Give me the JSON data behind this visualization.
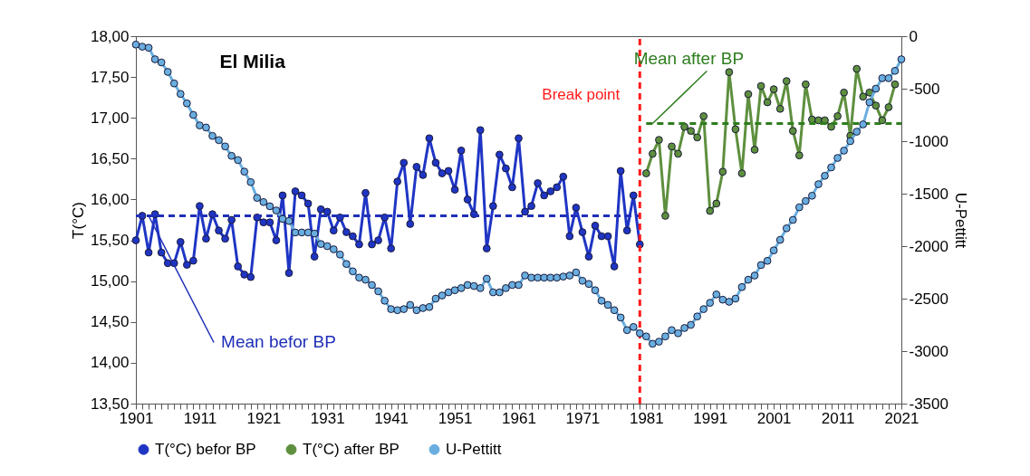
{
  "chart_data": {
    "type": "line",
    "title": "El Milia",
    "ylabel": "T(°C)",
    "y2label": "U-Pettitt",
    "xlim": [
      1901,
      2021
    ],
    "xticks": [
      1901,
      {
        "value": 1902,
        "label": null
      },
      {
        "value": 1903,
        "label": null
      },
      {
        "value": 1904,
        "label": null
      },
      {
        "value": 1905,
        "label": null
      },
      {
        "value": 1906,
        "label": null
      },
      {
        "value": 1907,
        "label": null
      },
      {
        "value": 1908,
        "label": null
      },
      {
        "value": 1909,
        "label": null
      },
      {
        "value": 1910,
        "label": null
      },
      1911,
      {
        "value": 1912,
        "label": null
      },
      {
        "value": 1913,
        "label": null
      },
      {
        "value": 1914,
        "label": null
      },
      {
        "value": 1915,
        "label": null
      },
      {
        "value": 1916,
        "label": null
      },
      {
        "value": 1917,
        "label": null
      },
      {
        "value": 1918,
        "label": null
      },
      {
        "value": 1919,
        "label": null
      },
      {
        "value": 1920,
        "label": null
      },
      1921,
      {
        "value": 1922,
        "label": null
      },
      {
        "value": 1923,
        "label": null
      },
      {
        "value": 1924,
        "label": null
      },
      {
        "value": 1925,
        "label": null
      },
      {
        "value": 1926,
        "label": null
      },
      {
        "value": 1927,
        "label": null
      },
      {
        "value": 1928,
        "label": null
      },
      {
        "value": 1929,
        "label": null
      },
      {
        "value": 1930,
        "label": null
      },
      1931,
      {
        "value": 1932,
        "label": null
      },
      {
        "value": 1933,
        "label": null
      },
      {
        "value": 1934,
        "label": null
      },
      {
        "value": 1935,
        "label": null
      },
      {
        "value": 1936,
        "label": null
      },
      {
        "value": 1937,
        "label": null
      },
      {
        "value": 1938,
        "label": null
      },
      {
        "value": 1939,
        "label": null
      },
      {
        "value": 1940,
        "label": null
      },
      1941,
      {
        "value": 1942,
        "label": null
      },
      {
        "value": 1943,
        "label": null
      },
      {
        "value": 1944,
        "label": null
      },
      {
        "value": 1945,
        "label": null
      },
      {
        "value": 1946,
        "label": null
      },
      {
        "value": 1947,
        "label": null
      },
      {
        "value": 1948,
        "label": null
      },
      {
        "value": 1949,
        "label": null
      },
      {
        "value": 1950,
        "label": null
      },
      1951,
      {
        "value": 1952,
        "label": null
      },
      {
        "value": 1953,
        "label": null
      },
      {
        "value": 1954,
        "label": null
      },
      {
        "value": 1955,
        "label": null
      },
      {
        "value": 1956,
        "label": null
      },
      {
        "value": 1957,
        "label": null
      },
      {
        "value": 1958,
        "label": null
      },
      {
        "value": 1959,
        "label": null
      },
      {
        "value": 1960,
        "label": null
      },
      1961,
      {
        "value": 1962,
        "label": null
      },
      {
        "value": 1963,
        "label": null
      },
      {
        "value": 1964,
        "label": null
      },
      {
        "value": 1965,
        "label": null
      },
      {
        "value": 1966,
        "label": null
      },
      {
        "value": 1967,
        "label": null
      },
      {
        "value": 1968,
        "label": null
      },
      {
        "value": 1969,
        "label": null
      },
      {
        "value": 1970,
        "label": null
      },
      1971,
      {
        "value": 1972,
        "label": null
      },
      {
        "value": 1973,
        "label": null
      },
      {
        "value": 1974,
        "label": null
      },
      {
        "value": 1975,
        "label": null
      },
      {
        "value": 1976,
        "label": null
      },
      {
        "value": 1977,
        "label": null
      },
      {
        "value": 1978,
        "label": null
      },
      {
        "value": 1979,
        "label": null
      },
      {
        "value": 1980,
        "label": null
      },
      1981,
      {
        "value": 1982,
        "label": null
      },
      {
        "value": 1983,
        "label": null
      },
      {
        "value": 1984,
        "label": null
      },
      {
        "value": 1985,
        "label": null
      },
      {
        "value": 1986,
        "label": null
      },
      {
        "value": 1987,
        "label": null
      },
      {
        "value": 1988,
        "label": null
      },
      {
        "value": 1989,
        "label": null
      },
      {
        "value": 1990,
        "label": null
      },
      1991,
      {
        "value": 1992,
        "label": null
      },
      {
        "value": 1993,
        "label": null
      },
      {
        "value": 1994,
        "label": null
      },
      {
        "value": 1995,
        "label": null
      },
      {
        "value": 1996,
        "label": null
      },
      {
        "value": 1997,
        "label": null
      },
      {
        "value": 1998,
        "label": null
      },
      {
        "value": 1999,
        "label": null
      },
      {
        "value": 2000,
        "label": null
      },
      2001,
      {
        "value": 2002,
        "label": null
      },
      {
        "value": 2003,
        "label": null
      },
      {
        "value": 2004,
        "label": null
      },
      {
        "value": 2005,
        "label": null
      },
      {
        "value": 2006,
        "label": null
      },
      {
        "value": 2007,
        "label": null
      },
      {
        "value": 2008,
        "label": null
      },
      {
        "value": 2009,
        "label": null
      },
      {
        "value": 2010,
        "label": null
      },
      2011,
      {
        "value": 2012,
        "label": null
      },
      {
        "value": 2013,
        "label": null
      },
      {
        "value": 2014,
        "label": null
      },
      {
        "value": 2015,
        "label": null
      },
      {
        "value": 2016,
        "label": null
      },
      {
        "value": 2017,
        "label": null
      },
      {
        "value": 2018,
        "label": null
      },
      {
        "value": 2019,
        "label": null
      },
      {
        "value": 2020,
        "label": null
      },
      2021
    ],
    "ylim": [
      13.5,
      18
    ],
    "yticks": [
      {
        "value": 13.5,
        "label": "13,50"
      },
      {
        "value": 14,
        "label": "14,00"
      },
      {
        "value": 14.5,
        "label": "14,50"
      },
      {
        "value": 15,
        "label": "15,00"
      },
      {
        "value": 15.5,
        "label": "15,50"
      },
      {
        "value": 16,
        "label": "16,00"
      },
      {
        "value": 16.5,
        "label": "16,50"
      },
      {
        "value": 17,
        "label": "17,00"
      },
      {
        "value": 17.5,
        "label": "17,50"
      },
      {
        "value": 18,
        "label": "18,00"
      }
    ],
    "y2lim": [
      -3500,
      0
    ],
    "y2ticks": [
      -3500,
      -3000,
      -2500,
      -2000,
      -1500,
      -1000,
      -500,
      0
    ],
    "grid": false,
    "legend": "bottom",
    "series": [
      {
        "name": "T(°C) befor BP",
        "color": "#1f35c4",
        "marker": "circle",
        "x": [
          1901,
          1902,
          1903,
          1904,
          1905,
          1906,
          1907,
          1908,
          1909,
          1910,
          1911,
          1912,
          1913,
          1914,
          1915,
          1916,
          1917,
          1918,
          1919,
          1920,
          1921,
          1922,
          1923,
          1924,
          1925,
          1926,
          1927,
          1928,
          1929,
          1930,
          1931,
          1932,
          1933,
          1934,
          1935,
          1936,
          1937,
          1938,
          1939,
          1940,
          1941,
          1942,
          1943,
          1944,
          1945,
          1946,
          1947,
          1948,
          1949,
          1950,
          1951,
          1952,
          1953,
          1954,
          1955,
          1956,
          1957,
          1958,
          1959,
          1960,
          1961,
          1962,
          1963,
          1964,
          1965,
          1966,
          1967,
          1968,
          1969,
          1970,
          1971,
          1972,
          1973,
          1974,
          1975,
          1976,
          1977,
          1978,
          1979,
          1980
        ],
        "values": [
          15.5,
          15.8,
          15.35,
          15.82,
          15.35,
          15.22,
          15.22,
          15.48,
          15.2,
          15.25,
          15.92,
          15.52,
          15.82,
          15.62,
          15.52,
          15.75,
          15.18,
          15.08,
          15.05,
          15.78,
          15.72,
          15.72,
          15.5,
          16.05,
          15.1,
          16.1,
          16.05,
          15.95,
          15.3,
          15.88,
          15.85,
          15.62,
          15.78,
          15.6,
          15.55,
          15.45,
          16.08,
          15.45,
          15.5,
          15.78,
          15.4,
          16.22,
          16.45,
          15.7,
          16.4,
          16.3,
          16.75,
          16.45,
          16.32,
          16.35,
          16.12,
          16.6,
          16.0,
          15.82,
          16.85,
          15.4,
          15.92,
          16.55,
          16.38,
          16.15,
          16.75,
          15.85,
          15.92,
          16.2,
          16.05,
          16.1,
          16.15,
          16.28,
          15.55,
          15.9,
          15.6,
          15.3,
          15.68,
          15.55,
          15.55,
          15.18,
          16.35,
          15.62,
          16.05,
          15.45
        ]
      },
      {
        "name": "T(°C) after BP",
        "color": "#5e8f3e",
        "marker": "circle",
        "x": [
          1981,
          1982,
          1983,
          1984,
          1985,
          1986,
          1987,
          1988,
          1989,
          1990,
          1991,
          1992,
          1993,
          1994,
          1995,
          1996,
          1997,
          1998,
          1999,
          2000,
          2001,
          2002,
          2003,
          2004,
          2005,
          2006,
          2007,
          2008,
          2009,
          2010,
          2011,
          2012,
          2013,
          2014,
          2015,
          2016,
          2017,
          2018,
          2019,
          2020
        ],
        "values": [
          16.32,
          16.56,
          16.73,
          15.8,
          16.65,
          16.56,
          16.89,
          16.84,
          16.76,
          17.02,
          15.86,
          15.95,
          16.34,
          17.56,
          16.86,
          16.32,
          17.29,
          16.61,
          17.39,
          17.19,
          17.35,
          17.11,
          17.45,
          16.84,
          16.54,
          17.41,
          16.98,
          16.97,
          16.97,
          16.89,
          17.02,
          17.31,
          16.78,
          17.6,
          17.26,
          17.31,
          17.15,
          16.97,
          17.13,
          17.41
        ]
      },
      {
        "name": "U-Pettitt",
        "color": "#6aaee0",
        "marker": "circle",
        "axis": "y2",
        "x": [
          1901,
          1902,
          1903,
          1904,
          1905,
          1906,
          1907,
          1908,
          1909,
          1910,
          1911,
          1912,
          1913,
          1914,
          1915,
          1916,
          1917,
          1918,
          1919,
          1920,
          1921,
          1922,
          1923,
          1924,
          1925,
          1926,
          1927,
          1928,
          1929,
          1930,
          1931,
          1932,
          1933,
          1934,
          1935,
          1936,
          1937,
          1938,
          1939,
          1940,
          1941,
          1942,
          1943,
          1944,
          1945,
          1946,
          1947,
          1948,
          1949,
          1950,
          1951,
          1952,
          1953,
          1954,
          1955,
          1956,
          1957,
          1958,
          1959,
          1960,
          1961,
          1962,
          1963,
          1964,
          1965,
          1966,
          1967,
          1968,
          1969,
          1970,
          1971,
          1972,
          1973,
          1974,
          1975,
          1976,
          1977,
          1978,
          1979,
          1980,
          1981,
          1982,
          1983,
          1984,
          1985,
          1986,
          1987,
          1988,
          1989,
          1990,
          1991,
          1992,
          1993,
          1994,
          1995,
          1996,
          1997,
          1998,
          1999,
          2000,
          2001,
          2002,
          2003,
          2004,
          2005,
          2006,
          2007,
          2008,
          2009,
          2010,
          2011,
          2012,
          2013,
          2014,
          2015,
          2016,
          2017,
          2018,
          2019,
          2020,
          2021
        ],
        "values": [
          -80,
          -100,
          -110,
          -220,
          -250,
          -340,
          -450,
          -550,
          -640,
          -750,
          -850,
          -870,
          -950,
          -990,
          -1050,
          -1140,
          -1180,
          -1290,
          -1390,
          -1540,
          -1580,
          -1620,
          -1660,
          -1740,
          -1760,
          -1870,
          -1870,
          -1870,
          -1880,
          -1980,
          -2000,
          -2030,
          -2080,
          -2170,
          -2240,
          -2300,
          -2320,
          -2370,
          -2430,
          -2520,
          -2600,
          -2610,
          -2600,
          -2560,
          -2610,
          -2590,
          -2580,
          -2500,
          -2470,
          -2440,
          -2420,
          -2400,
          -2370,
          -2380,
          -2400,
          -2310,
          -2440,
          -2440,
          -2400,
          -2370,
          -2370,
          -2280,
          -2300,
          -2300,
          -2300,
          -2300,
          -2300,
          -2290,
          -2280,
          -2250,
          -2330,
          -2360,
          -2420,
          -2520,
          -2560,
          -2610,
          -2680,
          -2800,
          -2770,
          -2830,
          -2860,
          -2930,
          -2910,
          -2860,
          -2800,
          -2830,
          -2780,
          -2750,
          -2670,
          -2600,
          -2540,
          -2460,
          -2510,
          -2530,
          -2500,
          -2390,
          -2320,
          -2280,
          -2180,
          -2140,
          -2040,
          -1940,
          -1830,
          -1750,
          -1630,
          -1570,
          -1520,
          -1410,
          -1330,
          -1250,
          -1160,
          -1090,
          -1000,
          -910,
          -840,
          -630,
          -500,
          -400,
          -400,
          -330,
          -220
        ]
      },
      {
        "type": "line",
        "color": "#1f2fb8",
        "marker": "none",
        "line_style": "dashed",
        "x": [
          1901,
          1980
        ],
        "values": [
          15.8,
          15.8
        ]
      },
      {
        "type": "line",
        "color": "#2e7d1f",
        "marker": "none",
        "line_style": "dashed",
        "x": [
          1981,
          2021
        ],
        "values": [
          16.93,
          16.93
        ]
      }
    ],
    "ref_lines": [
      {
        "axis": "x",
        "value": 1980,
        "label": "Break point",
        "color": "#ff1a1a",
        "line_style": "dashed"
      }
    ],
    "annotations": [
      {
        "text": "Mean befor BP",
        "x": 1903,
        "y": 15.8
      },
      {
        "text": "Mean after BP",
        "x": 1982,
        "y": 16.93
      }
    ]
  }
}
